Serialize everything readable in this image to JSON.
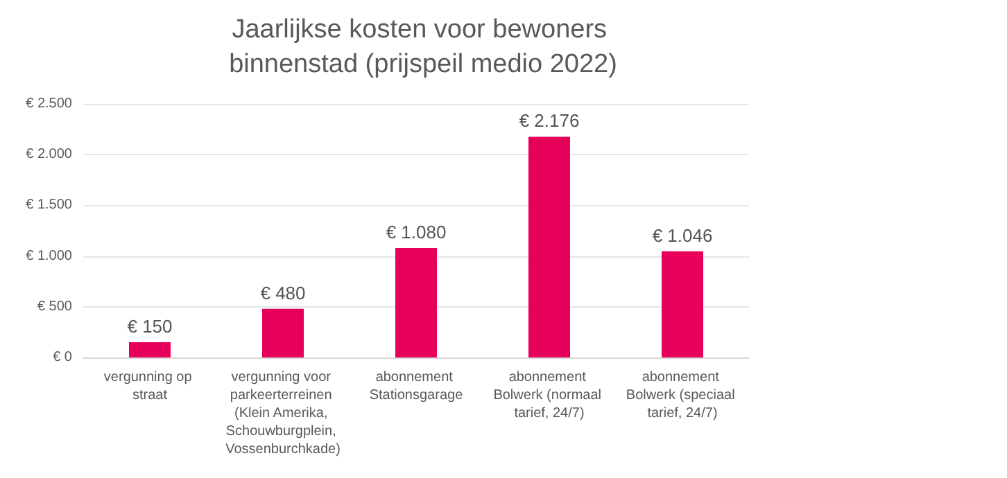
{
  "chart_data": {
    "type": "bar",
    "title": "Jaarlijkse kosten voor bewoners binnenstad (prijspeil medio 2022)",
    "categories": [
      "vergunning op straat",
      "vergunning voor parkeerterreinen (Klein Amerika, Schouwburgplein, Vossenburchkade)",
      "abonnement Stationsgarage",
      "abonnement Bolwerk (normaal tarief, 24/7)",
      "abonnement Bolwerk (speciaal tarief, 24/7)"
    ],
    "values": [
      150,
      480,
      1080,
      2176,
      1046
    ],
    "value_labels": [
      "€ 150",
      "€ 480",
      "€ 1.080",
      "€ 2.176",
      "€ 1.046"
    ],
    "color": "#e6005a",
    "ylim": [
      0,
      2500
    ],
    "yticks": [
      {
        "value": 0,
        "label": "€ 0"
      },
      {
        "value": 500,
        "label": "€ 500"
      },
      {
        "value": 1000,
        "label": "€ 1.000"
      },
      {
        "value": 1500,
        "label": "€ 1.500"
      },
      {
        "value": 2000,
        "label": "€ 2.000"
      },
      {
        "value": 2500,
        "label": "€ 2.500"
      }
    ],
    "grid": "y"
  }
}
